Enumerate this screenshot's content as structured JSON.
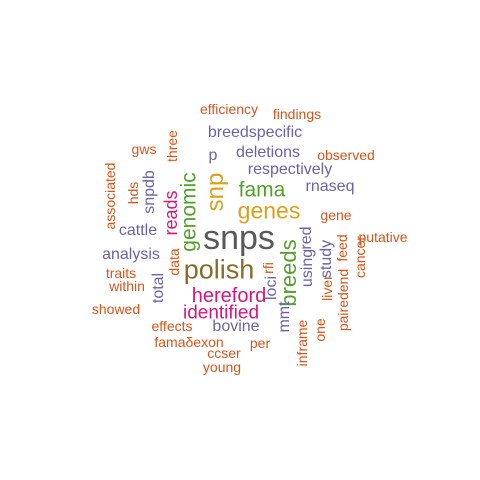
{
  "words": [
    {
      "text": "snps",
      "color": "grey"
    },
    {
      "text": "polish",
      "color": "olive"
    },
    {
      "text": "genes",
      "color": "gold"
    },
    {
      "text": "fama",
      "color": "green"
    },
    {
      "text": "snp",
      "color": "gold"
    },
    {
      "text": "breeds",
      "color": "green"
    },
    {
      "text": "hereford",
      "color": "magenta"
    },
    {
      "text": "identified",
      "color": "magenta"
    },
    {
      "text": "genomic",
      "color": "green"
    },
    {
      "text": "reads",
      "color": "magenta"
    },
    {
      "text": "respectively",
      "color": "purple"
    },
    {
      "text": "deletions",
      "color": "purple"
    },
    {
      "text": "rnaseq",
      "color": "purple"
    },
    {
      "text": "breedspecific",
      "color": "purple"
    },
    {
      "text": "analysis",
      "color": "purple"
    },
    {
      "text": "bovine",
      "color": "purple"
    },
    {
      "text": "using",
      "color": "purple"
    },
    {
      "text": "loci",
      "color": "purple"
    },
    {
      "text": "study",
      "color": "purple"
    },
    {
      "text": "mmt",
      "color": "purple"
    },
    {
      "text": "total",
      "color": "purple"
    },
    {
      "text": "snpdb",
      "color": "purple"
    },
    {
      "text": "cattle",
      "color": "purple"
    },
    {
      "text": "p",
      "color": "purple"
    },
    {
      "text": "red",
      "color": "purple"
    },
    {
      "text": "efficiency",
      "color": "orange"
    },
    {
      "text": "findings",
      "color": "orange"
    },
    {
      "text": "gws",
      "color": "orange"
    },
    {
      "text": "three",
      "color": "orange"
    },
    {
      "text": "observed",
      "color": "orange"
    },
    {
      "text": "associated",
      "color": "orange"
    },
    {
      "text": "hds",
      "color": "orange"
    },
    {
      "text": "gene",
      "color": "orange"
    },
    {
      "text": "putative",
      "color": "orange"
    },
    {
      "text": "feed",
      "color": "orange"
    },
    {
      "text": "cancer",
      "color": "orange"
    },
    {
      "text": "data",
      "color": "orange"
    },
    {
      "text": "traits",
      "color": "orange"
    },
    {
      "text": "within",
      "color": "orange"
    },
    {
      "text": "rfi",
      "color": "orange"
    },
    {
      "text": "liver",
      "color": "orange"
    },
    {
      "text": "pairedend",
      "color": "orange"
    },
    {
      "text": "showed",
      "color": "orange"
    },
    {
      "text": "effects",
      "color": "orange"
    },
    {
      "text": "one",
      "color": "orange"
    },
    {
      "text": "famaδexon",
      "color": "orange"
    },
    {
      "text": "ccser",
      "color": "orange"
    },
    {
      "text": "per",
      "color": "orange"
    },
    {
      "text": "inframe",
      "color": "orange"
    },
    {
      "text": "young",
      "color": "orange"
    }
  ]
}
